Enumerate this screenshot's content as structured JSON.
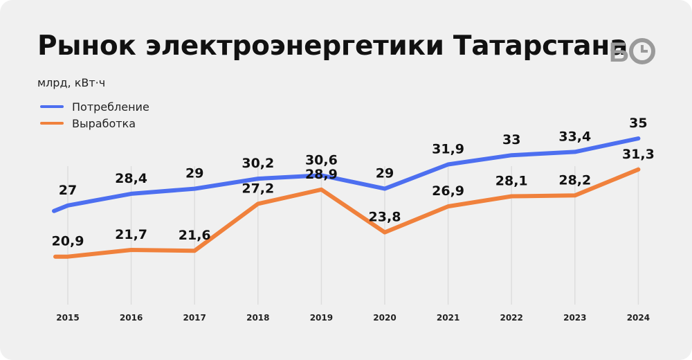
{
  "title": "Рынок электроэнергетики Татарстана",
  "unit": "млрд, кВт·ч",
  "logo_text": "БО",
  "colors": {
    "background": "#f0f0f0",
    "consumption": "#4d6ff0",
    "generation": "#f0813c",
    "gridline": "#dddddd",
    "text": "#111111"
  },
  "chart_data": {
    "type": "line",
    "title": "Рынок электроэнергетики Татарстана",
    "ylabel": "млрд, кВт·ч",
    "xlabel": "",
    "categories": [
      "2015",
      "2016",
      "2017",
      "2018",
      "2019",
      "2020",
      "2021",
      "2022",
      "2023",
      "2024"
    ],
    "series": [
      {
        "name": "Потребление",
        "color": "#4d6ff0",
        "values": [
          27,
          28.4,
          29,
          30.2,
          30.6,
          29,
          31.9,
          33,
          33.4,
          35
        ],
        "labels": [
          "27",
          "28,4",
          "29",
          "30,2",
          "30,6",
          "29",
          "31,9",
          "33",
          "33,4",
          "35"
        ]
      },
      {
        "name": "Выработка",
        "color": "#f0813c",
        "values": [
          20.9,
          21.7,
          21.6,
          27.2,
          28.9,
          23.8,
          26.9,
          28.1,
          28.2,
          31.3
        ],
        "labels": [
          "20,9",
          "21,7",
          "21,6",
          "27,2",
          "28,9",
          "23,8",
          "26,9",
          "28,1",
          "28,2",
          "31,3"
        ]
      }
    ],
    "grid": "vertical-only",
    "legend_position": "top-left"
  }
}
